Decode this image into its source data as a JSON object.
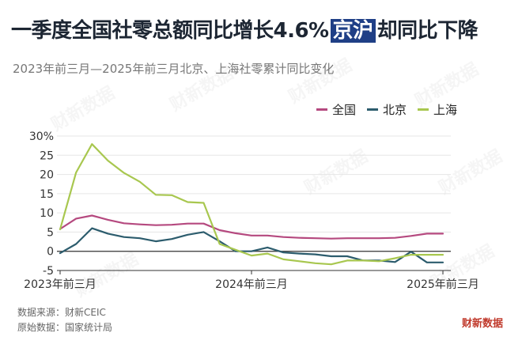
{
  "title": {
    "prefix": "一季度全国社零总额同比增长4.6%",
    "highlight": "京沪",
    "suffix": "却同比下降"
  },
  "subtitle": "2023年前三月—2025年前三月北京、上海社零累计同比变化",
  "watermark_text": "财新数据",
  "footer": {
    "source": "数据来源：财新CEIC",
    "raw": "原始数据：国家统计局"
  },
  "brand": "财新数据",
  "chart_data": {
    "type": "line",
    "x_labels": [
      "2023年前三月",
      "2024年前三月",
      "2025年前三月"
    ],
    "x": [
      0,
      1,
      2,
      3,
      4,
      5,
      6,
      7,
      8,
      9,
      10,
      11,
      12,
      13,
      14,
      15,
      16,
      17,
      18,
      19,
      20,
      21,
      22,
      23,
      24
    ],
    "ylim": [
      -5,
      30
    ],
    "yticks": [
      -5,
      0,
      5,
      10,
      15,
      20,
      25,
      30
    ],
    "ytick_labels": [
      "-5",
      "0",
      "5",
      "10",
      "15",
      "20",
      "25",
      "30%"
    ],
    "grid": true,
    "legend_position": "top-right",
    "series": [
      {
        "name": "全国",
        "color": "#b5497f",
        "values": [
          5.8,
          8.5,
          9.3,
          8.2,
          7.3,
          7.0,
          6.8,
          6.9,
          7.2,
          7.2,
          5.5,
          4.7,
          4.1,
          4.1,
          3.7,
          3.5,
          3.4,
          3.3,
          3.4,
          3.4,
          3.4,
          3.5,
          4.0,
          4.6,
          4.6
        ]
      },
      {
        "name": "北京",
        "color": "#2c5c6d",
        "values": [
          -0.5,
          1.9,
          6.0,
          4.6,
          3.7,
          3.4,
          2.6,
          3.2,
          4.3,
          5.0,
          2.6,
          0.0,
          0.0,
          1.0,
          -0.3,
          -0.6,
          -0.8,
          -1.3,
          -1.3,
          -2.4,
          -2.4,
          -2.8,
          -0.1,
          -2.9,
          -2.9
        ]
      },
      {
        "name": "上海",
        "color": "#a8c74f",
        "values": [
          5.7,
          20.5,
          27.9,
          23.6,
          20.4,
          18.1,
          14.7,
          14.6,
          12.8,
          12.6,
          1.9,
          0.4,
          -1.1,
          -0.6,
          -2.1,
          -2.6,
          -3.1,
          -3.4,
          -2.4,
          -2.4,
          -2.6,
          -1.8,
          -0.9,
          -0.9,
          -0.9
        ]
      }
    ]
  }
}
